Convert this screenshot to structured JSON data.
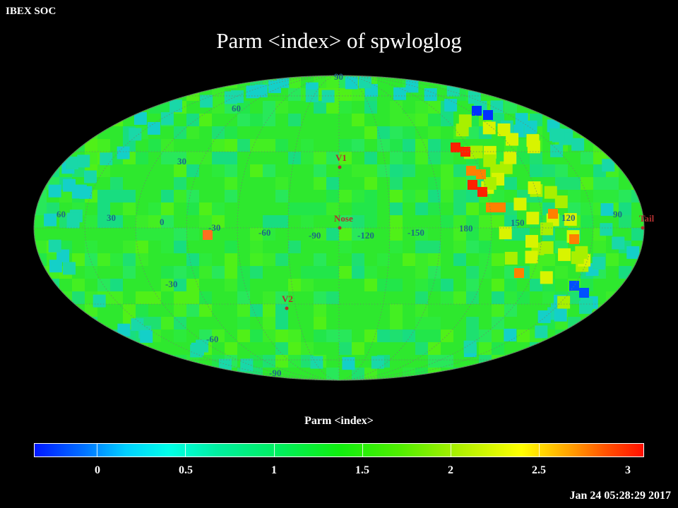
{
  "header": {
    "org": "IBEX SOC",
    "title": "Parm  <index> of spwloglog"
  },
  "map": {
    "projection": "Mollweide (Hammer-Aitoff style all-sky)",
    "background_color": "#000000",
    "pixel_base_color": "#2ee82e",
    "lat_labels": [
      "90",
      "60",
      "30",
      "0",
      "-30",
      "-60",
      "-90"
    ],
    "lon_labels": [
      "60",
      "30",
      "0",
      "-30",
      "-60",
      "-90",
      "-120",
      "-150",
      "180",
      "150",
      "120",
      "90"
    ],
    "markers": [
      {
        "label": "V1",
        "color": "#b03030"
      },
      {
        "label": "Nose",
        "color": "#b03030"
      },
      {
        "label": "V2",
        "color": "#b03030"
      },
      {
        "label": "Tail",
        "color": "#b03030"
      }
    ],
    "hotspots": [
      {
        "region": "upper-right ribbon",
        "value": 3.0,
        "color": "#ff2000"
      },
      {
        "region": "right ribbon",
        "value": 2.6,
        "color": "#ff8000"
      },
      {
        "region": "left lower",
        "value": 2.7,
        "color": "#ff7020"
      },
      {
        "region": "upper-right edge",
        "value": 0.0,
        "color": "#0030ff"
      },
      {
        "region": "lower-right edge",
        "value": 0.1,
        "color": "#0050ff"
      }
    ]
  },
  "colorbar": {
    "title": "Parm  <index>",
    "ticks": [
      "0",
      "0.5",
      "1",
      "1.5",
      "2",
      "2.5",
      "3"
    ],
    "tick_values": [
      0,
      0.5,
      1,
      1.5,
      2,
      2.5,
      3
    ],
    "min": -0.35,
    "max": 3.1
  },
  "footer": {
    "timestamp": "Jan 24 05:28:29 2017"
  }
}
